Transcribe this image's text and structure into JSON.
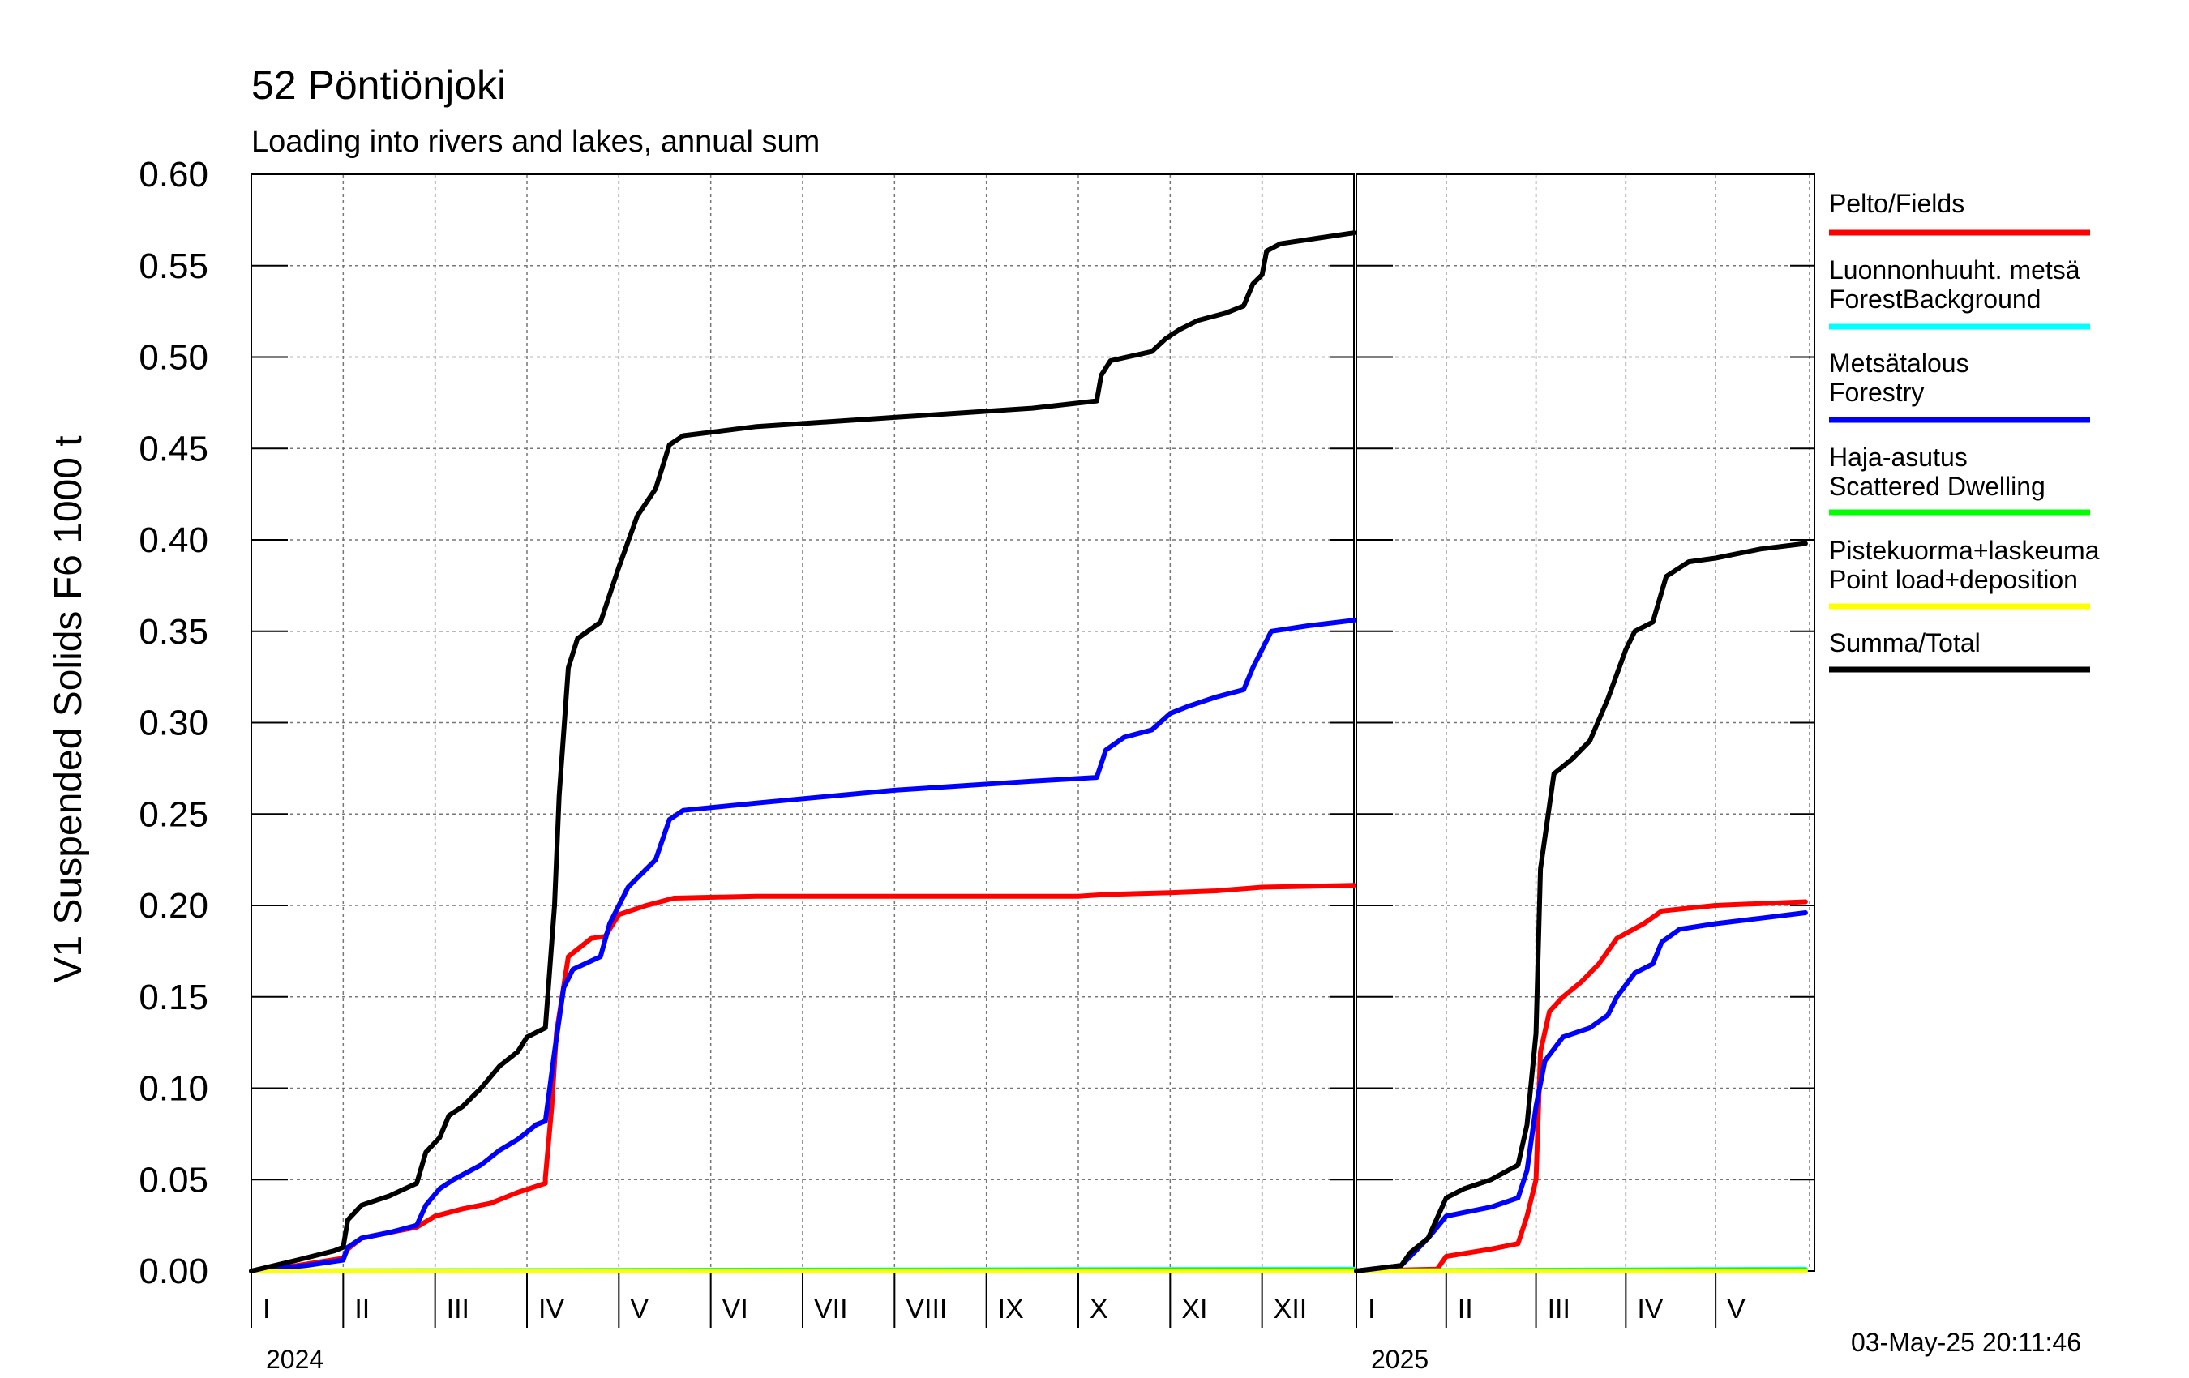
{
  "chart_data": {
    "type": "line",
    "title": "52 Pöntiönjoki",
    "subtitle": "Loading into rivers and lakes, annual sum",
    "ylabel": "V1 Suspended Solids F6 1000 t",
    "ylim": [
      0,
      0.6
    ],
    "yticks": [
      "0.00",
      "0.05",
      "0.10",
      "0.15",
      "0.20",
      "0.25",
      "0.30",
      "0.35",
      "0.40",
      "0.45",
      "0.50",
      "0.55",
      "0.60"
    ],
    "grid": true,
    "legend_position": "right",
    "timestamp": "03-May-25 20:11:46",
    "years": [
      {
        "label": "2024",
        "months": [
          "I",
          "II",
          "III",
          "IV",
          "V",
          "VI",
          "VII",
          "VIII",
          "IX",
          "X",
          "XI",
          "XII"
        ]
      },
      {
        "label": "2025",
        "months": [
          "I",
          "II",
          "III",
          "IV",
          "V"
        ]
      }
    ],
    "series": [
      {
        "name": "Pelto/Fields",
        "color": "#ff0000",
        "panels": [
          [
            [
              0,
              0
            ],
            [
              0.5,
              0.003
            ],
            [
              1.0,
              0.007
            ],
            [
              1.05,
              0.012
            ],
            [
              1.2,
              0.018
            ],
            [
              1.5,
              0.021
            ],
            [
              1.8,
              0.024
            ],
            [
              2.0,
              0.03
            ],
            [
              2.3,
              0.034
            ],
            [
              2.6,
              0.037
            ],
            [
              2.9,
              0.043
            ],
            [
              3.2,
              0.048
            ],
            [
              3.2,
              0.051
            ],
            [
              3.27,
              0.09
            ],
            [
              3.32,
              0.13
            ],
            [
              3.45,
              0.172
            ],
            [
              3.7,
              0.182
            ],
            [
              3.85,
              0.183
            ],
            [
              4.0,
              0.195
            ],
            [
              4.3,
              0.2
            ],
            [
              4.6,
              0.204
            ],
            [
              5.5,
              0.205
            ],
            [
              9.0,
              0.205
            ],
            [
              9.3,
              0.206
            ],
            [
              10.0,
              0.207
            ],
            [
              10.5,
              0.208
            ],
            [
              11.0,
              0.21
            ],
            [
              12.0,
              0.211
            ]
          ],
          [
            [
              0,
              0
            ],
            [
              0.9,
              0.001
            ],
            [
              1.0,
              0.008
            ],
            [
              1.5,
              0.012
            ],
            [
              1.8,
              0.015
            ],
            [
              1.9,
              0.03
            ],
            [
              2.0,
              0.05
            ],
            [
              2.05,
              0.12
            ],
            [
              2.15,
              0.142
            ],
            [
              2.3,
              0.15
            ],
            [
              2.5,
              0.158
            ],
            [
              2.7,
              0.168
            ],
            [
              2.9,
              0.182
            ],
            [
              3.2,
              0.19
            ],
            [
              3.4,
              0.197
            ],
            [
              3.6,
              0.198
            ],
            [
              4.0,
              0.2
            ],
            [
              4.5,
              0.201
            ],
            [
              5.0,
              0.202
            ]
          ]
        ]
      },
      {
        "name": "Luonnonhuuht. metsä\nForestBackground",
        "color": "#00ffff",
        "panels": [
          [
            [
              0,
              0
            ],
            [
              12,
              0.001
            ]
          ],
          [
            [
              0,
              0
            ],
            [
              5,
              0.001
            ]
          ]
        ]
      },
      {
        "name": "Metsätalous\nForestry",
        "color": "#0000ff",
        "panels": [
          [
            [
              0,
              0
            ],
            [
              0.6,
              0.003
            ],
            [
              1.0,
              0.006
            ],
            [
              1.05,
              0.013
            ],
            [
              1.2,
              0.018
            ],
            [
              1.5,
              0.021
            ],
            [
              1.8,
              0.025
            ],
            [
              1.9,
              0.036
            ],
            [
              2.05,
              0.045
            ],
            [
              2.2,
              0.05
            ],
            [
              2.5,
              0.058
            ],
            [
              2.7,
              0.066
            ],
            [
              2.9,
              0.072
            ],
            [
              3.1,
              0.08
            ],
            [
              3.2,
              0.082
            ],
            [
              3.3,
              0.12
            ],
            [
              3.4,
              0.155
            ],
            [
              3.5,
              0.165
            ],
            [
              3.8,
              0.172
            ],
            [
              3.9,
              0.19
            ],
            [
              4.1,
              0.21
            ],
            [
              4.4,
              0.225
            ],
            [
              4.55,
              0.247
            ],
            [
              4.7,
              0.252
            ],
            [
              5.5,
              0.256
            ],
            [
              7.0,
              0.263
            ],
            [
              8.5,
              0.268
            ],
            [
              9.2,
              0.27
            ],
            [
              9.3,
              0.285
            ],
            [
              9.5,
              0.292
            ],
            [
              9.8,
              0.296
            ],
            [
              10.0,
              0.305
            ],
            [
              10.2,
              0.309
            ],
            [
              10.5,
              0.314
            ],
            [
              10.8,
              0.318
            ],
            [
              10.9,
              0.33
            ],
            [
              11.0,
              0.34
            ],
            [
              11.1,
              0.35
            ],
            [
              11.5,
              0.353
            ],
            [
              12.0,
              0.356
            ]
          ],
          [
            [
              0,
              0
            ],
            [
              0.5,
              0.003
            ],
            [
              0.6,
              0.008
            ],
            [
              0.8,
              0.018
            ],
            [
              1.0,
              0.03
            ],
            [
              1.5,
              0.035
            ],
            [
              1.8,
              0.04
            ],
            [
              1.9,
              0.055
            ],
            [
              2.0,
              0.09
            ],
            [
              2.1,
              0.115
            ],
            [
              2.3,
              0.128
            ],
            [
              2.6,
              0.133
            ],
            [
              2.8,
              0.14
            ],
            [
              2.9,
              0.15
            ],
            [
              3.1,
              0.163
            ],
            [
              3.3,
              0.168
            ],
            [
              3.4,
              0.18
            ],
            [
              3.6,
              0.187
            ],
            [
              4.0,
              0.19
            ],
            [
              4.5,
              0.193
            ],
            [
              5.0,
              0.196
            ]
          ]
        ]
      },
      {
        "name": "Haja-asutus\nScattered Dwelling",
        "color": "#00ff00",
        "panels": [
          [
            [
              0,
              0
            ],
            [
              12,
              0.0005
            ]
          ],
          [
            [
              0,
              0
            ],
            [
              5,
              0.0005
            ]
          ]
        ]
      },
      {
        "name": "Pistekuorma+laskeuma\nPoint load+deposition",
        "color": "#ffff00",
        "panels": [
          [
            [
              0,
              0
            ],
            [
              12,
              0
            ]
          ],
          [
            [
              0,
              0
            ],
            [
              5,
              0
            ]
          ]
        ]
      },
      {
        "name": "Summa/Total",
        "color": "#000000",
        "panels": [
          [
            [
              0,
              0
            ],
            [
              0.5,
              0.006
            ],
            [
              0.9,
              0.011
            ],
            [
              1.0,
              0.013
            ],
            [
              1.05,
              0.028
            ],
            [
              1.2,
              0.036
            ],
            [
              1.5,
              0.041
            ],
            [
              1.8,
              0.048
            ],
            [
              1.9,
              0.065
            ],
            [
              2.05,
              0.073
            ],
            [
              2.15,
              0.085
            ],
            [
              2.3,
              0.09
            ],
            [
              2.5,
              0.1
            ],
            [
              2.7,
              0.112
            ],
            [
              2.9,
              0.12
            ],
            [
              3.0,
              0.128
            ],
            [
              3.2,
              0.133
            ],
            [
              3.3,
              0.2
            ],
            [
              3.35,
              0.26
            ],
            [
              3.45,
              0.33
            ],
            [
              3.55,
              0.346
            ],
            [
              3.8,
              0.355
            ],
            [
              4.0,
              0.385
            ],
            [
              4.2,
              0.413
            ],
            [
              4.4,
              0.428
            ],
            [
              4.55,
              0.452
            ],
            [
              4.7,
              0.457
            ],
            [
              5.5,
              0.462
            ],
            [
              7.0,
              0.467
            ],
            [
              8.5,
              0.472
            ],
            [
              9.2,
              0.476
            ],
            [
              9.25,
              0.49
            ],
            [
              9.35,
              0.498
            ],
            [
              9.8,
              0.503
            ],
            [
              9.95,
              0.51
            ],
            [
              10.1,
              0.515
            ],
            [
              10.3,
              0.52
            ],
            [
              10.6,
              0.524
            ],
            [
              10.8,
              0.528
            ],
            [
              10.9,
              0.54
            ],
            [
              11.0,
              0.545
            ],
            [
              11.05,
              0.558
            ],
            [
              11.2,
              0.562
            ],
            [
              11.6,
              0.565
            ],
            [
              12.0,
              0.568
            ]
          ],
          [
            [
              0,
              0
            ],
            [
              0.5,
              0.003
            ],
            [
              0.6,
              0.01
            ],
            [
              0.8,
              0.018
            ],
            [
              1.0,
              0.04
            ],
            [
              1.2,
              0.045
            ],
            [
              1.5,
              0.05
            ],
            [
              1.8,
              0.058
            ],
            [
              1.9,
              0.08
            ],
            [
              2.0,
              0.13
            ],
            [
              2.05,
              0.22
            ],
            [
              2.2,
              0.272
            ],
            [
              2.4,
              0.28
            ],
            [
              2.6,
              0.29
            ],
            [
              2.8,
              0.313
            ],
            [
              3.0,
              0.34
            ],
            [
              3.1,
              0.35
            ],
            [
              3.3,
              0.355
            ],
            [
              3.45,
              0.38
            ],
            [
              3.7,
              0.388
            ],
            [
              4.0,
              0.39
            ],
            [
              4.5,
              0.395
            ],
            [
              5.0,
              0.398
            ]
          ]
        ]
      }
    ]
  }
}
